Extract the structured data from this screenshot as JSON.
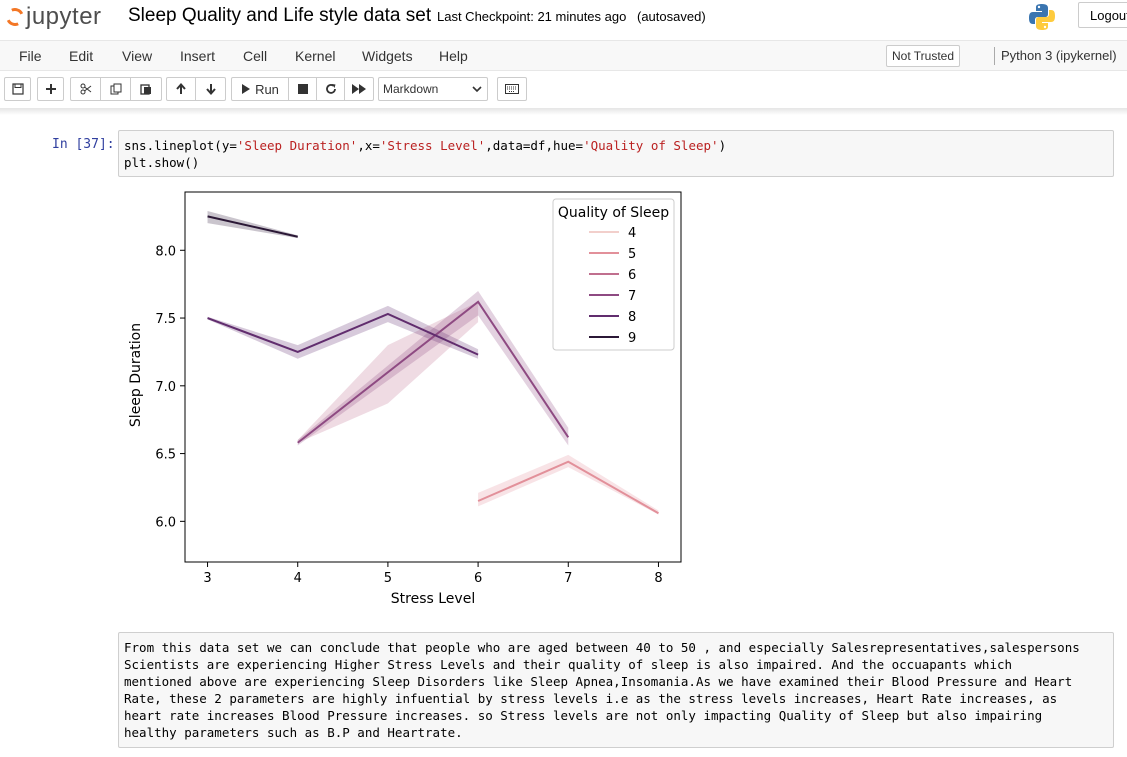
{
  "header": {
    "logo_text": "jupyter",
    "notebook_title": "Sleep Quality and Life style data set",
    "checkpoint": "Last Checkpoint: 21 minutes ago",
    "autosave": "(autosaved)",
    "logout_label": "Logout"
  },
  "menu": [
    "File",
    "Edit",
    "View",
    "Insert",
    "Cell",
    "Kernel",
    "Widgets",
    "Help"
  ],
  "trust_label": "Not Trusted",
  "kernel_name": "Python 3 (ipykernel)",
  "toolbar": {
    "run_label": "Run",
    "cell_type": "Markdown"
  },
  "code_cell": {
    "prompt": "In [37]:",
    "line1_parts": [
      "sns.lineplot(y=",
      "'Sleep Duration'",
      ",x=",
      "'Stress Level'",
      ",data=df,hue=",
      "'Quality of Sleep'",
      ")"
    ],
    "line2": "plt.show()"
  },
  "chart_data": {
    "type": "line",
    "xlabel": "Stress Level",
    "ylabel": "Sleep Duration",
    "xlim": [
      2.75,
      8.25
    ],
    "ylim": [
      5.7,
      8.43
    ],
    "xticks": [
      3,
      4,
      5,
      6,
      7,
      8
    ],
    "yticks": [
      "6.0",
      "6.5",
      "7.0",
      "7.5",
      "8.0"
    ],
    "legend_title": "Quality of Sleep",
    "legend_position": "upper right",
    "grid": false,
    "series": [
      {
        "name": "4",
        "color": "#f2cfcb",
        "points": [],
        "band": []
      },
      {
        "name": "5",
        "color": "#e2909a",
        "points": [
          [
            6,
            6.15
          ],
          [
            7,
            6.44
          ],
          [
            8,
            6.06
          ]
        ],
        "band": [
          [
            6,
            6.11,
            6.21
          ],
          [
            7,
            6.4,
            6.49
          ],
          [
            8,
            6.05,
            6.08
          ]
        ]
      },
      {
        "name": "6",
        "color": "#c06f8e",
        "points": [],
        "band": []
      },
      {
        "name": "7",
        "color": "#8e4a82",
        "points": [
          [
            4,
            6.58
          ],
          [
            6,
            7.62
          ],
          [
            7,
            6.62
          ]
        ],
        "band": [
          [
            4,
            6.56,
            6.6
          ],
          [
            6,
            7.52,
            7.7
          ],
          [
            7,
            6.56,
            6.69
          ]
        ]
      },
      {
        "name": "8",
        "color": "#612d6e",
        "points": [
          [
            3,
            7.5
          ],
          [
            4,
            7.25
          ],
          [
            5,
            7.53
          ],
          [
            6,
            7.23
          ]
        ],
        "band": [
          [
            3,
            7.49,
            7.51
          ],
          [
            4,
            7.2,
            7.3
          ],
          [
            5,
            7.47,
            7.59
          ],
          [
            6,
            7.2,
            7.27
          ]
        ]
      },
      {
        "name": "9",
        "color": "#2b1836",
        "points": [
          [
            3,
            8.25
          ],
          [
            4,
            8.1
          ]
        ],
        "band": [
          [
            3,
            8.2,
            8.29
          ],
          [
            4,
            8.09,
            8.11
          ]
        ]
      }
    ],
    "extra_bands": [
      {
        "color": "#c06f8e",
        "band": [
          [
            4,
            6.58,
            6.6
          ],
          [
            5,
            6.87,
            7.3
          ],
          [
            6,
            7.47,
            7.62
          ]
        ]
      }
    ]
  },
  "markdown_text": "From this data set we can conclude that people who are aged between 40 to 50 , and especially Salesrepresentatives,salespersons\nScientists are experiencing Higher Stress Levels and their quality of sleep is also impaired. And the occuapants which\nmentioned above are experiencing Sleep Disorders like Sleep Apnea,Insomania.As we have examined their Blood Pressure and Heart\nRate, these 2 parameters are highly infuential by stress levels i.e as the stress levels increases, Heart Rate increases, as\nheart rate increases Blood Pressure increases. so Stress levels are not only impacting Quality of Sleep but also impairing\nhealthy parameters such as B.P and Heartrate."
}
